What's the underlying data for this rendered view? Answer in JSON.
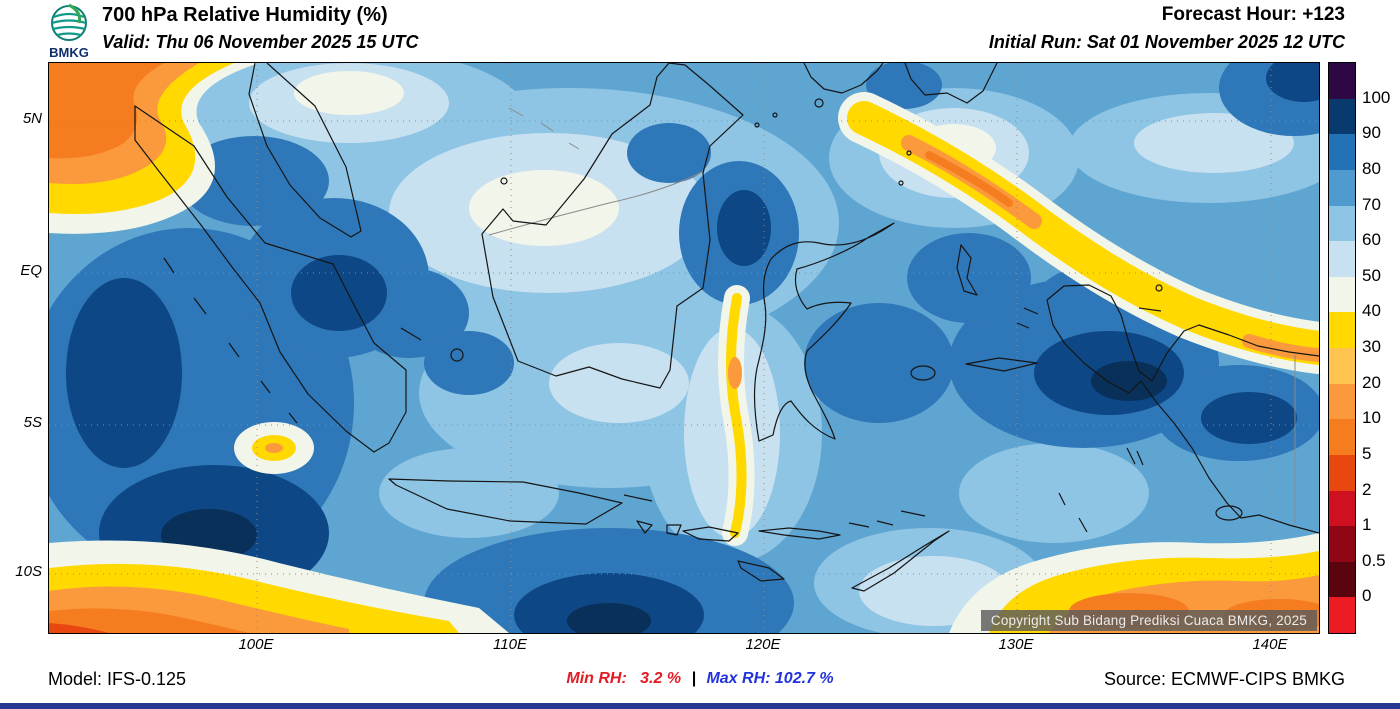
{
  "header": {
    "logo_text": "BMKG",
    "title": "700 hPa Relative Humidity (%)",
    "valid": "Valid: Thu 06 November 2025 15 UTC",
    "forecast_hour": "Forecast Hour: +123",
    "initial_run": "Initial Run: Sat 01 November 2025 12 UTC"
  },
  "map": {
    "lat_labels": [
      "5N",
      "EQ",
      "5S",
      "10S"
    ],
    "lon_labels": [
      "100E",
      "110E",
      "120E",
      "130E",
      "140E"
    ],
    "copyright": "Copyright Sub Bidang Prediksi Cuaca BMKG, 2025"
  },
  "colorbar": {
    "labels": [
      "100",
      "90",
      "80",
      "70",
      "60",
      "50",
      "40",
      "30",
      "20",
      "10",
      "5",
      "2",
      "1",
      "0.5",
      "0"
    ],
    "colors": [
      "#2e0845",
      "#083a6e",
      "#2272b5",
      "#4f9bcf",
      "#8ec4e4",
      "#c8e1f0",
      "#f1f5ea",
      "#ffd900",
      "#fec44f",
      "#fb9a3c",
      "#f57d20",
      "#e8480f",
      "#cf1020",
      "#8f0615",
      "#5a040e",
      "#ed1c24"
    ]
  },
  "footer": {
    "model": "Model: IFS-0.125",
    "min_rh": "Min RH:   3.2 %",
    "separator": "|",
    "max_rh": "Max RH: 102.7 %",
    "source": "Source: ECMWF-CIPS BMKG",
    "min_color": "#e31b23",
    "max_color": "#2233dd"
  },
  "palette": {
    "base_70_80": "#5fa5d2",
    "rh_60_70": "#8ec4e4",
    "rh_50_60": "#c8e1f0",
    "rh_40_50": "#f1f5ea",
    "rh_80_90": "#2e77b8",
    "rh_90_100": "#0d4785",
    "rh_100_plus": "#083058",
    "rh_30_40_yellow": "#ffd900",
    "rh_10_20_orange": "#fb9a3c",
    "rh_5_10_deep_orange": "#f57d20"
  }
}
